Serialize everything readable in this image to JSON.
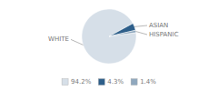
{
  "chart_data": {
    "type": "pie",
    "categories": [
      "WHITE",
      "ASIAN",
      "HISPANIC"
    ],
    "values": [
      94.2,
      4.3,
      1.4
    ],
    "value_labels": [
      "94.2%",
      "4.3%",
      "1.4%"
    ],
    "colors": [
      "#d6dfe8",
      "#2e5f8a",
      "#8fa8be"
    ],
    "legend": "bottom"
  }
}
